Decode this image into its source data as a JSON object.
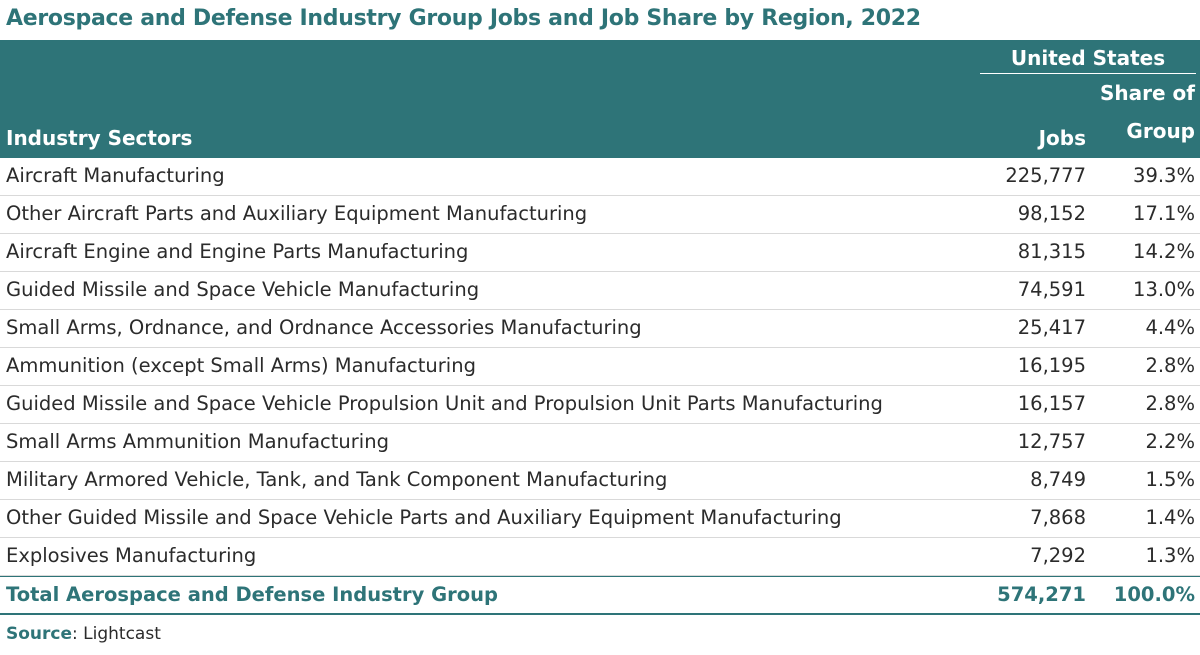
{
  "title": "Aerospace and Defense Industry Group Jobs and Job Share by Region, 2022",
  "table": {
    "group_header": "United States",
    "col_sectors": "Industry Sectors",
    "col_jobs": "Jobs",
    "col_share_line1": "Share of",
    "col_share_line2": "Group",
    "rows": [
      {
        "sector": "Aircraft Manufacturing",
        "jobs": "225,777",
        "share": "39.3%"
      },
      {
        "sector": "Other Aircraft Parts and Auxiliary Equipment Manufacturing",
        "jobs": "98,152",
        "share": "17.1%"
      },
      {
        "sector": "Aircraft Engine and Engine Parts Manufacturing",
        "jobs": "81,315",
        "share": "14.2%"
      },
      {
        "sector": "Guided Missile and Space Vehicle Manufacturing",
        "jobs": "74,591",
        "share": "13.0%"
      },
      {
        "sector": "Small Arms, Ordnance, and Ordnance Accessories Manufacturing",
        "jobs": "25,417",
        "share": "4.4%"
      },
      {
        "sector": "Ammunition (except Small Arms) Manufacturing",
        "jobs": "16,195",
        "share": "2.8%"
      },
      {
        "sector": "Guided Missile and Space Vehicle Propulsion Unit and Propulsion Unit Parts Manufacturing",
        "jobs": "16,157",
        "share": "2.8%"
      },
      {
        "sector": "Small Arms Ammunition Manufacturing",
        "jobs": "12,757",
        "share": "2.2%"
      },
      {
        "sector": "Military Armored Vehicle, Tank, and Tank Component Manufacturing",
        "jobs": "8,749",
        "share": "1.5%"
      },
      {
        "sector": "Other Guided Missile and Space Vehicle Parts and Auxiliary Equipment Manufacturing",
        "jobs": "7,868",
        "share": "1.4%"
      },
      {
        "sector": "Explosives Manufacturing",
        "jobs": "7,292",
        "share": "1.3%"
      }
    ],
    "total": {
      "sector": "Total Aerospace and Defense Industry Group",
      "jobs": "574,271",
      "share": "100.0%"
    }
  },
  "source": {
    "label": "Source",
    "text": ": Lightcast"
  },
  "colors": {
    "header_bg": "#2e7478",
    "title": "#2e7478"
  }
}
